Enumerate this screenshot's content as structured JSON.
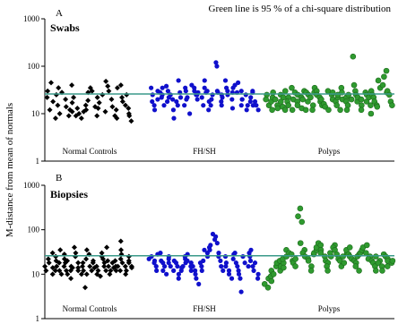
{
  "note": "Green line is 95 % of a chi-square distribution",
  "ylabel": "M-distance from mean of normals",
  "colors": {
    "normal": "#000000",
    "fhsh": "#1010cc",
    "polyps": "#2f9a2f",
    "polyps_edge": "#1d6b1d",
    "threshold": "#3a9a8a"
  },
  "chart_data": [
    {
      "type": "scatter",
      "letter": "A",
      "title": "Swabs",
      "yscale": "log",
      "ylim": [
        1,
        1000
      ],
      "yticks": [
        1,
        10,
        100,
        1000
      ],
      "ytick_labels": [
        "1",
        "10",
        "100",
        "1000"
      ],
      "threshold": 26,
      "categories": [
        "Normal Controls",
        "FH/SH",
        "Polyps"
      ],
      "series": [
        {
          "key": "normal",
          "marker": "diamond",
          "y": [
            22,
            30,
            45,
            12,
            18,
            25,
            8,
            35,
            15,
            10,
            28,
            20,
            14,
            9,
            12,
            40,
            17,
            11,
            22,
            9,
            13,
            10,
            8,
            11,
            15,
            12,
            19,
            28,
            35,
            30,
            14,
            22,
            9,
            13,
            17,
            25,
            11,
            48,
            38,
            30,
            20,
            14,
            9,
            8,
            12,
            35,
            40,
            18,
            22,
            15,
            25,
            10,
            13,
            9,
            7
          ]
        },
        {
          "key": "fhsh",
          "marker": "circle",
          "y": [
            35,
            25,
            18,
            15,
            12,
            30,
            20,
            28,
            35,
            22,
            25,
            15,
            18,
            38,
            30,
            22,
            25,
            12,
            20,
            8,
            15,
            18,
            50,
            28,
            22,
            15,
            35,
            30,
            20,
            22,
            10,
            40,
            35,
            30,
            25,
            25,
            28,
            20,
            22,
            15,
            50,
            35,
            28,
            30,
            18,
            12,
            15,
            20,
            25,
            120,
            100,
            28,
            30,
            25,
            18,
            15,
            22,
            35,
            50,
            30,
            25,
            20,
            13,
            28,
            35,
            40,
            45,
            28,
            30,
            15,
            20,
            20,
            25,
            15,
            12,
            18,
            22,
            28,
            30,
            15,
            18,
            15,
            12
          ]
        },
        {
          "key": "polyps",
          "marker": "circle",
          "y": [
            25,
            20,
            15,
            18,
            22,
            12,
            28,
            20,
            15,
            13,
            25,
            18,
            22,
            14,
            12,
            30,
            22,
            18,
            15,
            12,
            35,
            28,
            20,
            25,
            18,
            15,
            22,
            20,
            13,
            12,
            30,
            28,
            25,
            18,
            22,
            15,
            12,
            28,
            35,
            30,
            25,
            22,
            18,
            20,
            15,
            16,
            14,
            12,
            30,
            25,
            20,
            28,
            18,
            15,
            22,
            25,
            12,
            35,
            28,
            20,
            22,
            18,
            15,
            12,
            25,
            20,
            160,
            40,
            30,
            25,
            18,
            22,
            20,
            15,
            12,
            28,
            25,
            18,
            22,
            15,
            10,
            30,
            25,
            22,
            18,
            15,
            14,
            50,
            35,
            40,
            60,
            80,
            28,
            30,
            25,
            18,
            15
          ]
        }
      ]
    },
    {
      "type": "scatter",
      "letter": "B",
      "title": "Biopsies",
      "yscale": "log",
      "ylim": [
        1,
        1000
      ],
      "yticks": [
        1,
        10,
        100,
        1000
      ],
      "ytick_labels": [
        "1",
        "10",
        "100",
        "1000"
      ],
      "threshold": 26,
      "categories": [
        "Normal Controls",
        "FH/SH",
        "Polyps"
      ],
      "series": [
        {
          "key": "normal",
          "marker": "diamond",
          "y": [
            15,
            12,
            18,
            22,
            10,
            14,
            30,
            12,
            20,
            15,
            25,
            18,
            12,
            10,
            35,
            28,
            22,
            15,
            12,
            18,
            20,
            10,
            8,
            12,
            15,
            14,
            30,
            40,
            25,
            18,
            14,
            12,
            10,
            15,
            18,
            12,
            5,
            10,
            22,
            35,
            28,
            15,
            12,
            18,
            20,
            14,
            10,
            12,
            15,
            9,
            30,
            25,
            22,
            15,
            12,
            18,
            40,
            20,
            15,
            12,
            10,
            14,
            18,
            15,
            12,
            20,
            15,
            12,
            55,
            35,
            22,
            28,
            18,
            15,
            12,
            10,
            20,
            25,
            18,
            15,
            14
          ]
        },
        {
          "key": "fhsh",
          "marker": "circle",
          "y": [
            22,
            25,
            20,
            18,
            15,
            12,
            28,
            30,
            20,
            18,
            15,
            12,
            10,
            25,
            18,
            22,
            15,
            12,
            20,
            18,
            15,
            10,
            8,
            14,
            12,
            15,
            18,
            22,
            25,
            28,
            20,
            18,
            15,
            12,
            15,
            12,
            10,
            8,
            6,
            18,
            15,
            12,
            20,
            35,
            30,
            25,
            40,
            35,
            45,
            60,
            80,
            70,
            50,
            30,
            25,
            20,
            15,
            12,
            25,
            18,
            15,
            12,
            10,
            8,
            22,
            28,
            30,
            18,
            15,
            12,
            10,
            8,
            4,
            25,
            18,
            15,
            30,
            35,
            25,
            20,
            15,
            12,
            18,
            10,
            8
          ]
        },
        {
          "key": "polyps",
          "marker": "circle",
          "y": [
            6,
            8,
            5,
            7,
            9,
            12,
            10,
            15,
            18,
            20,
            12,
            15,
            18,
            22,
            14,
            25,
            35,
            30,
            28,
            20,
            18,
            22,
            15,
            200,
            300,
            150,
            50,
            35,
            30,
            25,
            22,
            20,
            15,
            12,
            28,
            30,
            35,
            40,
            50,
            45,
            35,
            30,
            25,
            20,
            18,
            15,
            12,
            25,
            30,
            45,
            40,
            35,
            28,
            22,
            20,
            15,
            18,
            25,
            30,
            35,
            40,
            28,
            25,
            22,
            20,
            18,
            15,
            12,
            25,
            28,
            30,
            35,
            40,
            45,
            30,
            25,
            22,
            20,
            18,
            15,
            12,
            25,
            20,
            18,
            15,
            12,
            28,
            25,
            22,
            20,
            15,
            18,
            20
          ]
        }
      ]
    }
  ]
}
